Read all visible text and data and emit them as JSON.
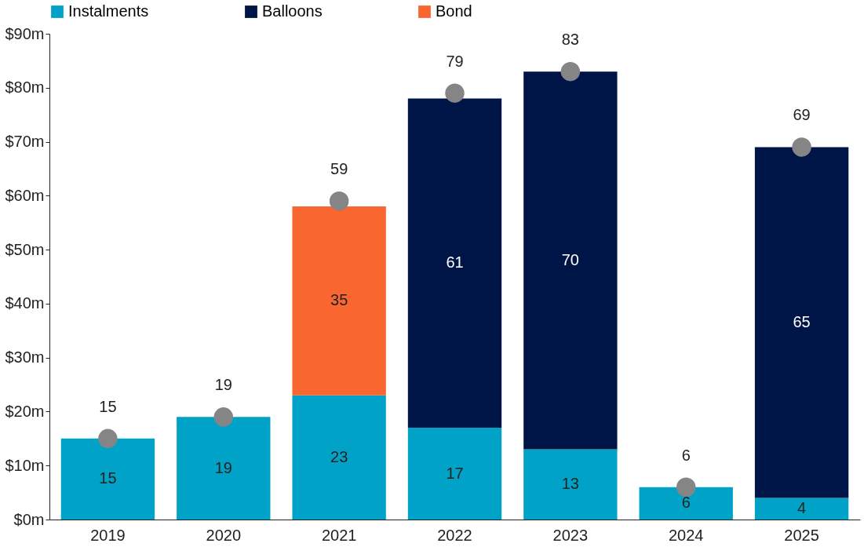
{
  "chart_data": {
    "type": "bar",
    "stacked": true,
    "categories": [
      "2019",
      "2020",
      "2021",
      "2022",
      "2023",
      "2024",
      "2025"
    ],
    "series": [
      {
        "name": "Instalments",
        "color": "#00a3c7",
        "values": [
          15,
          19,
          23,
          17,
          13,
          6,
          4
        ]
      },
      {
        "name": "Balloons",
        "color": "#001547",
        "values": [
          null,
          null,
          null,
          61,
          70,
          null,
          65
        ]
      },
      {
        "name": "Bond",
        "color": "#f96630",
        "values": [
          null,
          null,
          35,
          null,
          null,
          null,
          null
        ]
      },
      {
        "type": "scatter",
        "color": "#858585",
        "values": [
          15,
          19,
          59,
          79,
          83,
          6,
          69
        ]
      }
    ],
    "ylim": [
      0,
      90
    ],
    "yticks": [
      {
        "value": 0,
        "label": "$0m"
      },
      {
        "value": 10,
        "label": "$10m"
      },
      {
        "value": 20,
        "label": "$20m"
      },
      {
        "value": 30,
        "label": "$30m"
      },
      {
        "value": 40,
        "label": "$40m"
      },
      {
        "value": 50,
        "label": "$50m"
      },
      {
        "value": 60,
        "label": "$60m"
      },
      {
        "value": 70,
        "label": "$70m"
      },
      {
        "value": 80,
        "label": "$80m"
      },
      {
        "value": 90,
        "label": "$90m"
      }
    ],
    "data_labels": true,
    "legend": "top",
    "grid": false,
    "marker": "circle"
  }
}
